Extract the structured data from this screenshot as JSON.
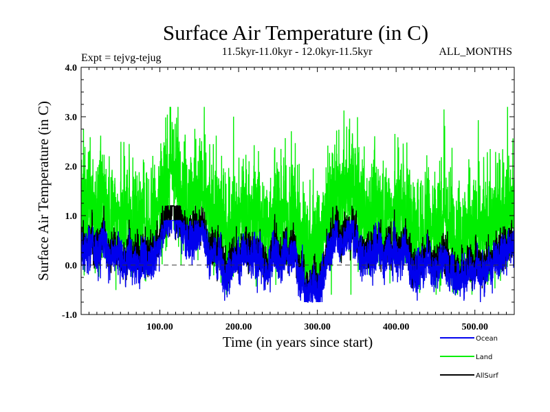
{
  "chart_data": {
    "type": "line",
    "title": "Surface Air Temperature (in C)",
    "subtitle_left": "Expt = tejvg-tejug",
    "subtitle_center": "11.5kyr-11.0kyr - 12.0kyr-11.5kyr",
    "subtitle_right": "ALL_MONTHS",
    "xlabel": "Time (in years since start)",
    "ylabel": "Surface Air Temperature (in C)",
    "xlim": [
      0,
      550
    ],
    "ylim": [
      -1.0,
      4.0
    ],
    "x_ticks": [
      100,
      200,
      300,
      400,
      500
    ],
    "x_tick_labels": [
      "100.00",
      "200.00",
      "300.00",
      "400.00",
      "500.00"
    ],
    "y_ticks": [
      -1.0,
      0.0,
      1.0,
      2.0,
      3.0,
      4.0
    ],
    "y_tick_labels": [
      "-1.0",
      "0.0",
      "1.0",
      "2.0",
      "3.0",
      "4.0"
    ],
    "zero_line": 0.0,
    "series": [
      {
        "name": "Land",
        "color": "#00ee00",
        "mean": 1.0,
        "spread": 0.55,
        "peak_min": 2.8,
        "peak_max": 3.2,
        "approx_range": [
          -0.6,
          3.2
        ]
      },
      {
        "name": "AllSurf",
        "color": "#000000",
        "mean": 0.3,
        "spread": 0.2,
        "approx_range": [
          -0.5,
          1.2
        ]
      },
      {
        "name": "Ocean",
        "color": "#0000ee",
        "mean": 0.15,
        "spread": 0.2,
        "approx_range": [
          -0.75,
          0.9
        ]
      }
    ],
    "legend": {
      "position": "bottom-right",
      "items": [
        {
          "label": "Ocean",
          "color": "#0000ee"
        },
        {
          "label": "Land",
          "color": "#00ee00"
        },
        {
          "label": "AllSurf",
          "color": "#000000"
        }
      ]
    }
  }
}
